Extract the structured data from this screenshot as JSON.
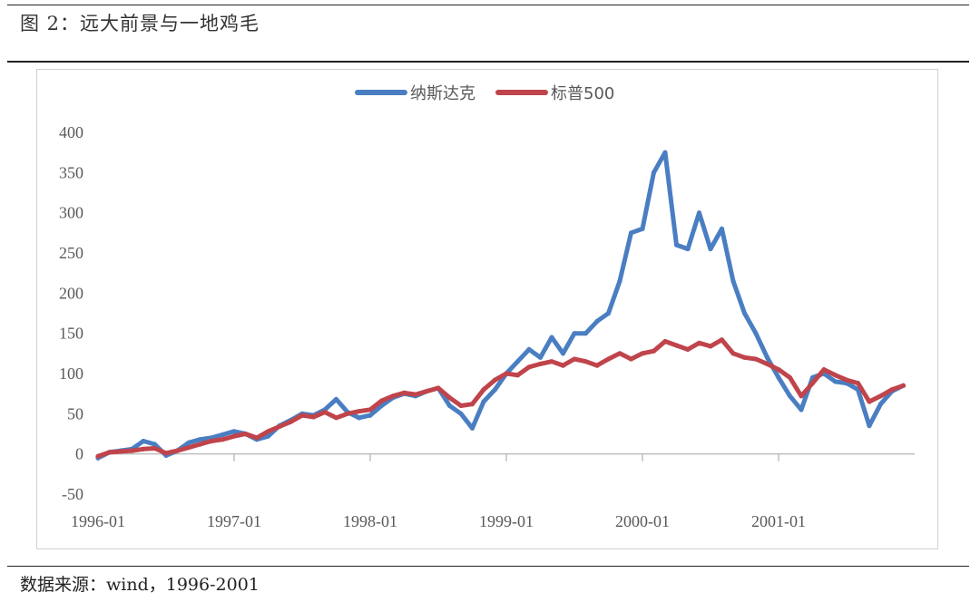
{
  "figure_title": "图 2：远大前景与一地鸡毛",
  "source_note": "数据来源：wind，1996-2001",
  "colors": {
    "nasdaq": "#4a7ec2",
    "sp500": "#c0444b",
    "axis": "#bfbfbf",
    "text": "#595959"
  },
  "chart_data": {
    "type": "line",
    "title": "",
    "xlabel": "",
    "ylabel": "",
    "ylim": [
      -50,
      400
    ],
    "yticks": [
      -50,
      0,
      50,
      100,
      150,
      200,
      250,
      300,
      350,
      400
    ],
    "xlim": [
      "1996-01",
      "2001-12"
    ],
    "xticks": [
      "1996-01",
      "1997-01",
      "1998-01",
      "1999-01",
      "2000-01",
      "2001-01"
    ],
    "legend_position": "top-center",
    "grid": false,
    "series": [
      {
        "name": "纳斯达克",
        "color": "#4a7ec2",
        "x": [
          "1996-01",
          "1996-02",
          "1996-03",
          "1996-04",
          "1996-05",
          "1996-06",
          "1996-07",
          "1996-08",
          "1996-09",
          "1996-10",
          "1996-11",
          "1996-12",
          "1997-01",
          "1997-02",
          "1997-03",
          "1997-04",
          "1997-05",
          "1997-06",
          "1997-07",
          "1997-08",
          "1997-09",
          "1997-10",
          "1997-11",
          "1997-12",
          "1998-01",
          "1998-02",
          "1998-03",
          "1998-04",
          "1998-05",
          "1998-06",
          "1998-07",
          "1998-08",
          "1998-09",
          "1998-10",
          "1998-11",
          "1998-12",
          "1999-01",
          "1999-02",
          "1999-03",
          "1999-04",
          "1999-05",
          "1999-06",
          "1999-07",
          "1999-08",
          "1999-09",
          "1999-10",
          "1999-11",
          "1999-12",
          "2000-01",
          "2000-02",
          "2000-03",
          "2000-04",
          "2000-05",
          "2000-06",
          "2000-07",
          "2000-08",
          "2000-09",
          "2000-10",
          "2000-11",
          "2000-12",
          "2001-01",
          "2001-02",
          "2001-03",
          "2001-04",
          "2001-05",
          "2001-06",
          "2001-07",
          "2001-08",
          "2001-09",
          "2001-10",
          "2001-11",
          "2001-12"
        ],
        "values": [
          -5,
          2,
          4,
          6,
          16,
          12,
          -2,
          4,
          14,
          18,
          20,
          24,
          28,
          25,
          18,
          22,
          35,
          42,
          50,
          48,
          55,
          68,
          52,
          45,
          48,
          60,
          70,
          75,
          72,
          78,
          82,
          60,
          50,
          32,
          65,
          80,
          100,
          115,
          130,
          120,
          145,
          125,
          150,
          150,
          165,
          175,
          215,
          275,
          280,
          350,
          375,
          260,
          255,
          300,
          255,
          280,
          215,
          175,
          150,
          120,
          95,
          72,
          55,
          95,
          100,
          90,
          88,
          80,
          35,
          62,
          78,
          85
        ]
      },
      {
        "name": "标普500",
        "color": "#c0444b",
        "x": [
          "1996-01",
          "1996-02",
          "1996-03",
          "1996-04",
          "1996-05",
          "1996-06",
          "1996-07",
          "1996-08",
          "1996-09",
          "1996-10",
          "1996-11",
          "1996-12",
          "1997-01",
          "1997-02",
          "1997-03",
          "1997-04",
          "1997-05",
          "1997-06",
          "1997-07",
          "1997-08",
          "1997-09",
          "1997-10",
          "1997-11",
          "1997-12",
          "1998-01",
          "1998-02",
          "1998-03",
          "1998-04",
          "1998-05",
          "1998-06",
          "1998-07",
          "1998-08",
          "1998-09",
          "1998-10",
          "1998-11",
          "1998-12",
          "1999-01",
          "1999-02",
          "1999-03",
          "1999-04",
          "1999-05",
          "1999-06",
          "1999-07",
          "1999-08",
          "1999-09",
          "1999-10",
          "1999-11",
          "1999-12",
          "2000-01",
          "2000-02",
          "2000-03",
          "2000-04",
          "2000-05",
          "2000-06",
          "2000-07",
          "2000-08",
          "2000-09",
          "2000-10",
          "2000-11",
          "2000-12",
          "2001-01",
          "2001-02",
          "2001-03",
          "2001-04",
          "2001-05",
          "2001-06",
          "2001-07",
          "2001-08",
          "2001-09",
          "2001-10",
          "2001-11",
          "2001-12"
        ],
        "values": [
          -3,
          2,
          3,
          4,
          6,
          7,
          1,
          4,
          8,
          12,
          16,
          18,
          22,
          25,
          20,
          28,
          34,
          40,
          48,
          46,
          52,
          45,
          50,
          53,
          55,
          66,
          72,
          76,
          74,
          78,
          82,
          70,
          60,
          62,
          80,
          92,
          100,
          98,
          108,
          112,
          115,
          110,
          118,
          115,
          110,
          118,
          125,
          118,
          125,
          128,
          140,
          135,
          130,
          138,
          134,
          142,
          125,
          120,
          118,
          112,
          105,
          95,
          72,
          88,
          105,
          98,
          92,
          88,
          65,
          72,
          80,
          85
        ]
      }
    ]
  }
}
